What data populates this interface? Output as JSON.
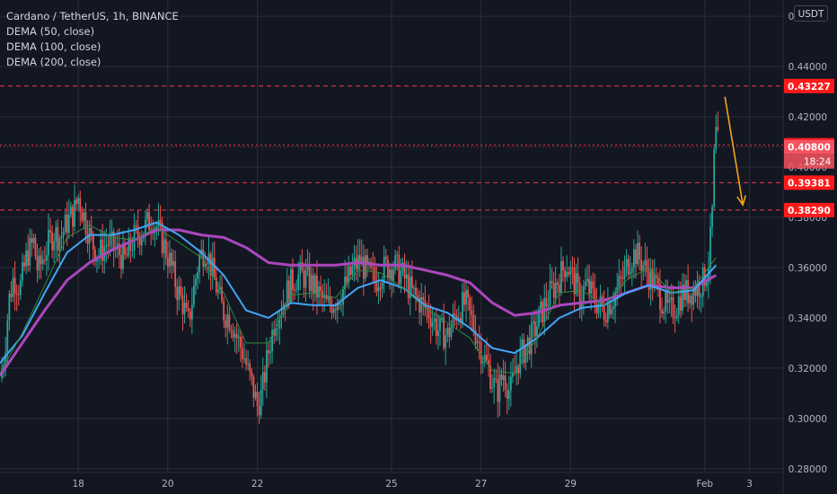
{
  "title": "Cardano / TetherUS, 1h, BINANCE",
  "indicators": [
    "DEMA (50, close)",
    "DEMA (100, close)",
    "DEMA (200, close)"
  ],
  "currency_label": "USDT",
  "colors": {
    "background": "#131722",
    "grid": "#2a2e39",
    "candle_up": "#26a69a",
    "candle_down": "#ef5350",
    "dema50": "#2e8b3e",
    "dema100": "#42a5f5",
    "dema200": "#ab47bc",
    "level_line": "#f23645",
    "arrow": "#f7a21b",
    "axis_text": "#b2b5be"
  },
  "chart_data": {
    "type": "candlestick",
    "title": "Cardano / TetherUS, 1h, BINANCE",
    "y_axis": {
      "ylim": [
        0.2785,
        0.4665
      ],
      "ticks": [
        "0.46000",
        "0.44000",
        "0.42000",
        "0.40000",
        "0.38000",
        "0.36000",
        "0.34000",
        "0.32000",
        "0.30000",
        "0.28000"
      ]
    },
    "x_axis": {
      "xlim": [
        0,
        17.5
      ],
      "ticks": [
        {
          "label": "18",
          "x": 1.75
        },
        {
          "label": "20",
          "x": 3.75
        },
        {
          "label": "22",
          "x": 5.75
        },
        {
          "label": "25",
          "x": 8.75
        },
        {
          "label": "27",
          "x": 10.75
        },
        {
          "label": "29",
          "x": 12.75
        },
        {
          "label": "Feb",
          "x": 15.75
        },
        {
          "label": "3",
          "x": 16.75
        }
      ]
    },
    "grid": true,
    "price_levels": [
      {
        "price": 0.43227,
        "label": "0.43227",
        "style": "dashed"
      },
      {
        "price": 0.40875,
        "label": "0.40875",
        "style": "dotted"
      },
      {
        "price": 0.408,
        "label": "0.40800",
        "style": "current"
      },
      {
        "price": 0.3938,
        "label": "0.39381",
        "style": "dashed"
      },
      {
        "price": 0.3829,
        "label": "0.38290",
        "style": "dashed"
      }
    ],
    "countdown_label": "18:24",
    "price_anchors": [
      [
        0,
        0.316
      ],
      [
        0.1,
        0.326
      ],
      [
        0.2,
        0.347
      ],
      [
        0.3,
        0.356
      ],
      [
        0.45,
        0.352
      ],
      [
        0.6,
        0.365
      ],
      [
        0.75,
        0.37
      ],
      [
        0.85,
        0.358
      ],
      [
        1.0,
        0.366
      ],
      [
        1.2,
        0.374
      ],
      [
        1.35,
        0.372
      ],
      [
        1.5,
        0.378
      ],
      [
        1.65,
        0.382
      ],
      [
        1.75,
        0.388
      ],
      [
        1.9,
        0.379
      ],
      [
        2.05,
        0.37
      ],
      [
        2.2,
        0.365
      ],
      [
        2.4,
        0.37
      ],
      [
        2.6,
        0.367
      ],
      [
        2.8,
        0.363
      ],
      [
        3.0,
        0.372
      ],
      [
        3.2,
        0.375
      ],
      [
        3.4,
        0.38
      ],
      [
        3.6,
        0.372
      ],
      [
        3.8,
        0.362
      ],
      [
        3.95,
        0.352
      ],
      [
        4.1,
        0.345
      ],
      [
        4.2,
        0.337
      ],
      [
        4.3,
        0.348
      ],
      [
        4.45,
        0.364
      ],
      [
        4.6,
        0.368
      ],
      [
        4.75,
        0.358
      ],
      [
        4.9,
        0.348
      ],
      [
        5.0,
        0.342
      ],
      [
        5.15,
        0.34
      ],
      [
        5.3,
        0.332
      ],
      [
        5.45,
        0.325
      ],
      [
        5.55,
        0.318
      ],
      [
        5.65,
        0.312
      ],
      [
        5.75,
        0.305
      ],
      [
        5.85,
        0.31
      ],
      [
        6.0,
        0.327
      ],
      [
        6.15,
        0.34
      ],
      [
        6.3,
        0.345
      ],
      [
        6.45,
        0.352
      ],
      [
        6.6,
        0.356
      ],
      [
        6.75,
        0.357
      ],
      [
        6.9,
        0.355
      ],
      [
        7.1,
        0.35
      ],
      [
        7.3,
        0.345
      ],
      [
        7.5,
        0.347
      ],
      [
        7.7,
        0.352
      ],
      [
        7.9,
        0.36
      ],
      [
        8.05,
        0.363
      ],
      [
        8.2,
        0.358
      ],
      [
        8.4,
        0.355
      ],
      [
        8.6,
        0.36
      ],
      [
        8.8,
        0.361
      ],
      [
        9.0,
        0.357
      ],
      [
        9.2,
        0.35
      ],
      [
        9.4,
        0.346
      ],
      [
        9.6,
        0.342
      ],
      [
        9.8,
        0.335
      ],
      [
        10.0,
        0.333
      ],
      [
        10.2,
        0.342
      ],
      [
        10.4,
        0.346
      ],
      [
        10.6,
        0.336
      ],
      [
        10.8,
        0.325
      ],
      [
        10.95,
        0.318
      ],
      [
        11.1,
        0.31
      ],
      [
        11.25,
        0.318
      ],
      [
        11.4,
        0.31
      ],
      [
        11.55,
        0.322
      ],
      [
        11.7,
        0.327
      ],
      [
        11.9,
        0.333
      ],
      [
        12.1,
        0.342
      ],
      [
        12.3,
        0.35
      ],
      [
        12.5,
        0.356
      ],
      [
        12.65,
        0.362
      ],
      [
        12.8,
        0.356
      ],
      [
        12.95,
        0.348
      ],
      [
        13.1,
        0.353
      ],
      [
        13.3,
        0.347
      ],
      [
        13.5,
        0.343
      ],
      [
        13.7,
        0.348
      ],
      [
        13.9,
        0.355
      ],
      [
        14.05,
        0.363
      ],
      [
        14.2,
        0.366
      ],
      [
        14.35,
        0.362
      ],
      [
        14.5,
        0.357
      ],
      [
        14.65,
        0.353
      ],
      [
        14.8,
        0.347
      ],
      [
        14.95,
        0.342
      ],
      [
        15.1,
        0.345
      ],
      [
        15.25,
        0.35
      ],
      [
        15.4,
        0.35
      ],
      [
        15.55,
        0.352
      ],
      [
        15.7,
        0.354
      ],
      [
        15.82,
        0.36
      ],
      [
        15.9,
        0.375
      ],
      [
        15.96,
        0.408
      ],
      [
        16.02,
        0.42
      ],
      [
        16.07,
        0.408
      ]
    ],
    "series": [
      {
        "name": "DEMA (50, close)",
        "x": [
          0,
          0.5,
          1.0,
          1.5,
          2.0,
          2.5,
          3.0,
          3.5,
          4.0,
          4.5,
          5.0,
          5.5,
          6.0,
          6.5,
          7.0,
          7.5,
          8.0,
          8.5,
          9.0,
          9.5,
          10.0,
          10.5,
          11.0,
          11.5,
          12.0,
          12.5,
          13.0,
          13.5,
          14.0,
          14.5,
          15.0,
          15.5,
          16.0
        ],
        "values": [
          0.318,
          0.334,
          0.353,
          0.372,
          0.377,
          0.372,
          0.371,
          0.376,
          0.37,
          0.364,
          0.35,
          0.33,
          0.33,
          0.349,
          0.35,
          0.348,
          0.359,
          0.358,
          0.352,
          0.344,
          0.338,
          0.332,
          0.319,
          0.318,
          0.332,
          0.35,
          0.351,
          0.345,
          0.355,
          0.36,
          0.35,
          0.352,
          0.364
        ]
      },
      {
        "name": "DEMA (100, close)",
        "x": [
          0,
          0.5,
          1.0,
          1.5,
          2.0,
          2.5,
          3.0,
          3.5,
          4.0,
          4.5,
          5.0,
          5.5,
          6.0,
          6.5,
          7.0,
          7.5,
          8.0,
          8.5,
          9.0,
          9.5,
          10.0,
          10.5,
          11.0,
          11.5,
          12.0,
          12.5,
          13.0,
          13.5,
          14.0,
          14.5,
          15.0,
          15.5,
          16.0
        ],
        "values": [
          0.322,
          0.333,
          0.35,
          0.366,
          0.373,
          0.373,
          0.375,
          0.378,
          0.373,
          0.366,
          0.357,
          0.343,
          0.34,
          0.346,
          0.345,
          0.345,
          0.352,
          0.355,
          0.352,
          0.345,
          0.342,
          0.336,
          0.328,
          0.326,
          0.332,
          0.34,
          0.344,
          0.345,
          0.35,
          0.353,
          0.35,
          0.351,
          0.361
        ]
      },
      {
        "name": "DEMA (200, close)",
        "x": [
          0,
          0.5,
          1.0,
          1.5,
          2.0,
          2.5,
          3.0,
          3.5,
          4.0,
          4.5,
          5.0,
          5.5,
          6.0,
          6.5,
          7.0,
          7.5,
          8.0,
          8.5,
          9.0,
          9.5,
          10.0,
          10.5,
          11.0,
          11.5,
          12.0,
          12.5,
          13.0,
          13.5,
          14.0,
          14.5,
          15.0,
          15.5,
          16.0
        ],
        "values": [
          0.317,
          0.33,
          0.343,
          0.355,
          0.362,
          0.367,
          0.371,
          0.375,
          0.375,
          0.373,
          0.372,
          0.368,
          0.362,
          0.361,
          0.361,
          0.361,
          0.362,
          0.361,
          0.361,
          0.359,
          0.357,
          0.354,
          0.346,
          0.341,
          0.342,
          0.345,
          0.346,
          0.347,
          0.35,
          0.353,
          0.352,
          0.352,
          0.357
        ]
      }
    ],
    "annotation": {
      "type": "arrow",
      "from": [
        16.2,
        0.428
      ],
      "to": [
        16.6,
        0.385
      ]
    }
  }
}
